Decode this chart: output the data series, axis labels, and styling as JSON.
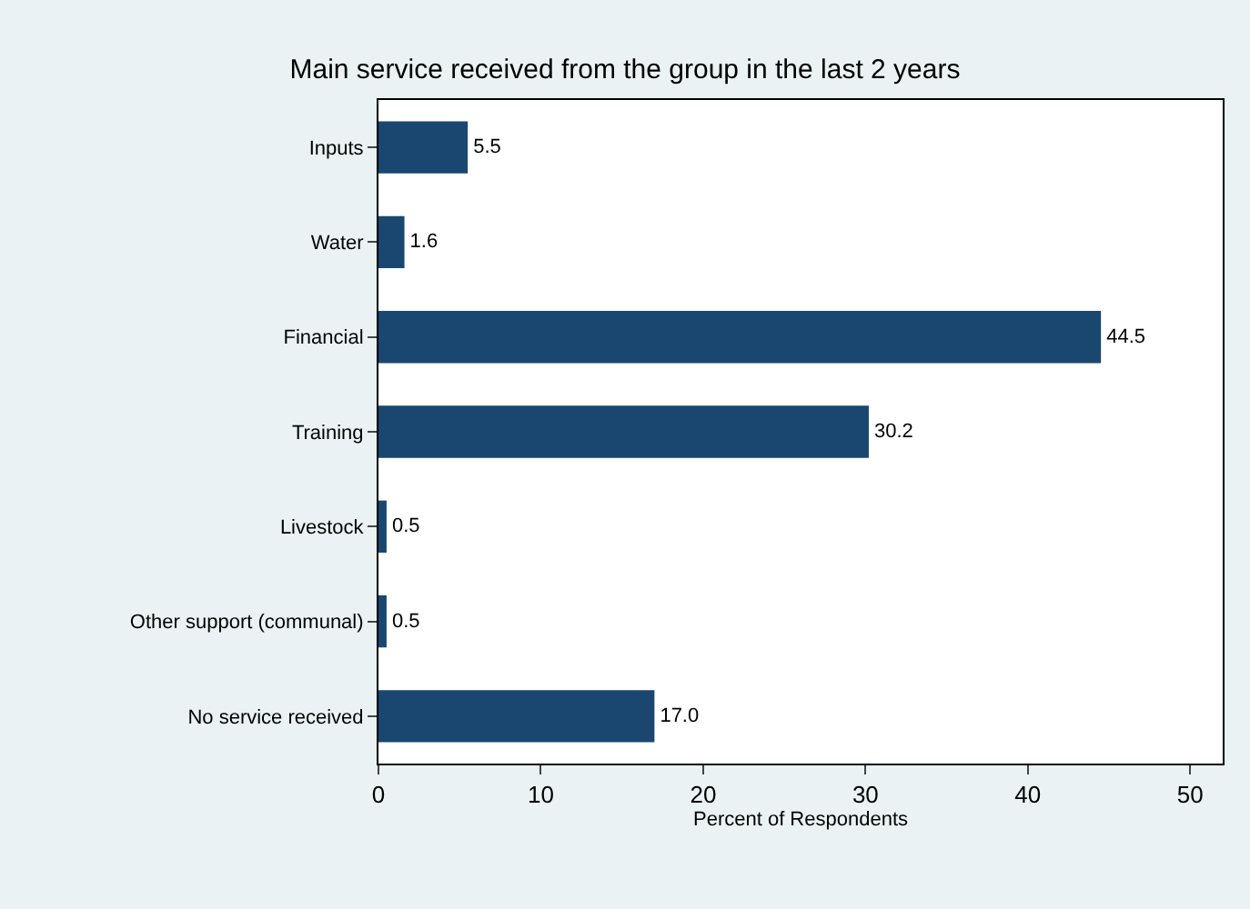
{
  "chart_data": {
    "type": "bar",
    "orientation": "horizontal",
    "title": "Main service received from the group in the last 2 years",
    "xlabel": "Percent of Respondents",
    "categories": [
      "Inputs",
      "Water",
      "Financial",
      "Training",
      "Livestock",
      "Other support (communal)",
      "No service received"
    ],
    "values": [
      5.5,
      1.6,
      44.5,
      30.2,
      0.5,
      0.5,
      17.0
    ],
    "value_labels": [
      "5.5",
      "1.6",
      "44.5",
      "30.2",
      "0.5",
      "0.5",
      "17.0"
    ],
    "color": "#1a476f",
    "xlim": [
      0,
      52
    ],
    "xticks": [
      0,
      10,
      20,
      30,
      40,
      50
    ],
    "legend": false
  }
}
